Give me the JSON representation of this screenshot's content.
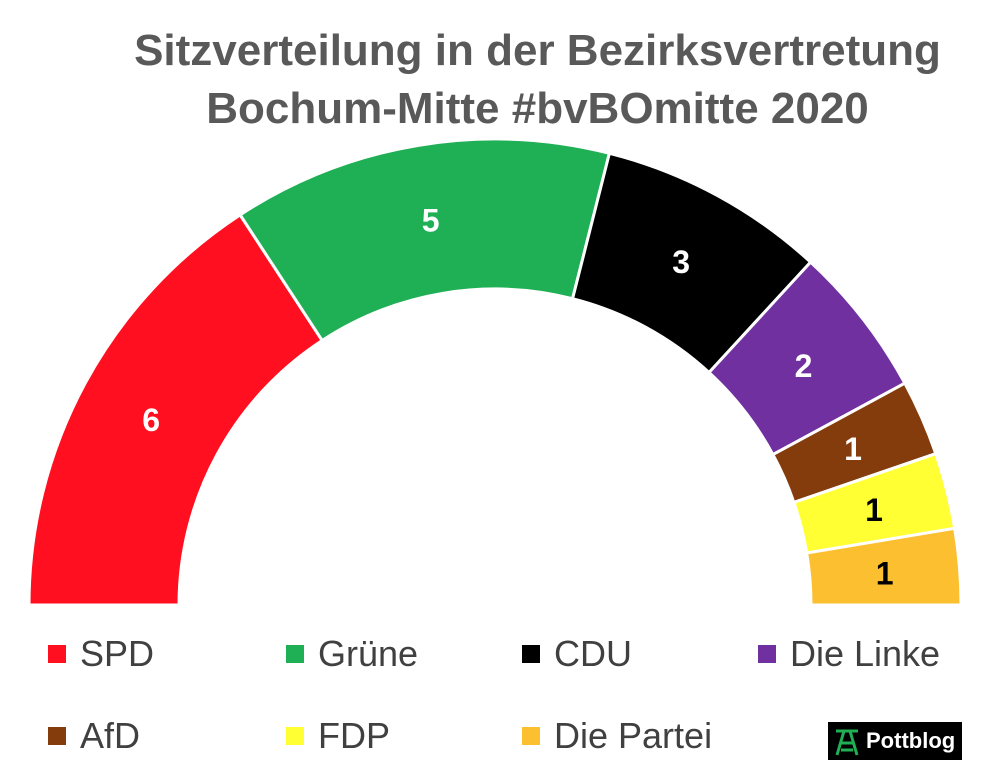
{
  "chart_data": {
    "type": "pie",
    "variant": "semicircle-parliament",
    "title_lines": [
      "Sitzverteilung in der Bezirksvertretung",
      "Bochum-Mitte #bvBOmitte 2020"
    ],
    "categories": [
      "SPD",
      "Grüne",
      "CDU",
      "Die Linke",
      "AfD",
      "FDP",
      "Die Partei"
    ],
    "values": [
      6,
      5,
      3,
      2,
      1,
      1,
      1
    ],
    "colors": [
      "#FF0F1F",
      "#1FAF55",
      "#000000",
      "#7030A0",
      "#843C0C",
      "#FFFF33",
      "#FCBF30"
    ],
    "label_colors": [
      "#ffffff",
      "#ffffff",
      "#ffffff",
      "#ffffff",
      "#ffffff",
      "#000000",
      "#000000"
    ],
    "legend_placement": "bottom"
  },
  "brand": {
    "logo": "pottblog-headframe-icon",
    "text": "Pottblog"
  }
}
